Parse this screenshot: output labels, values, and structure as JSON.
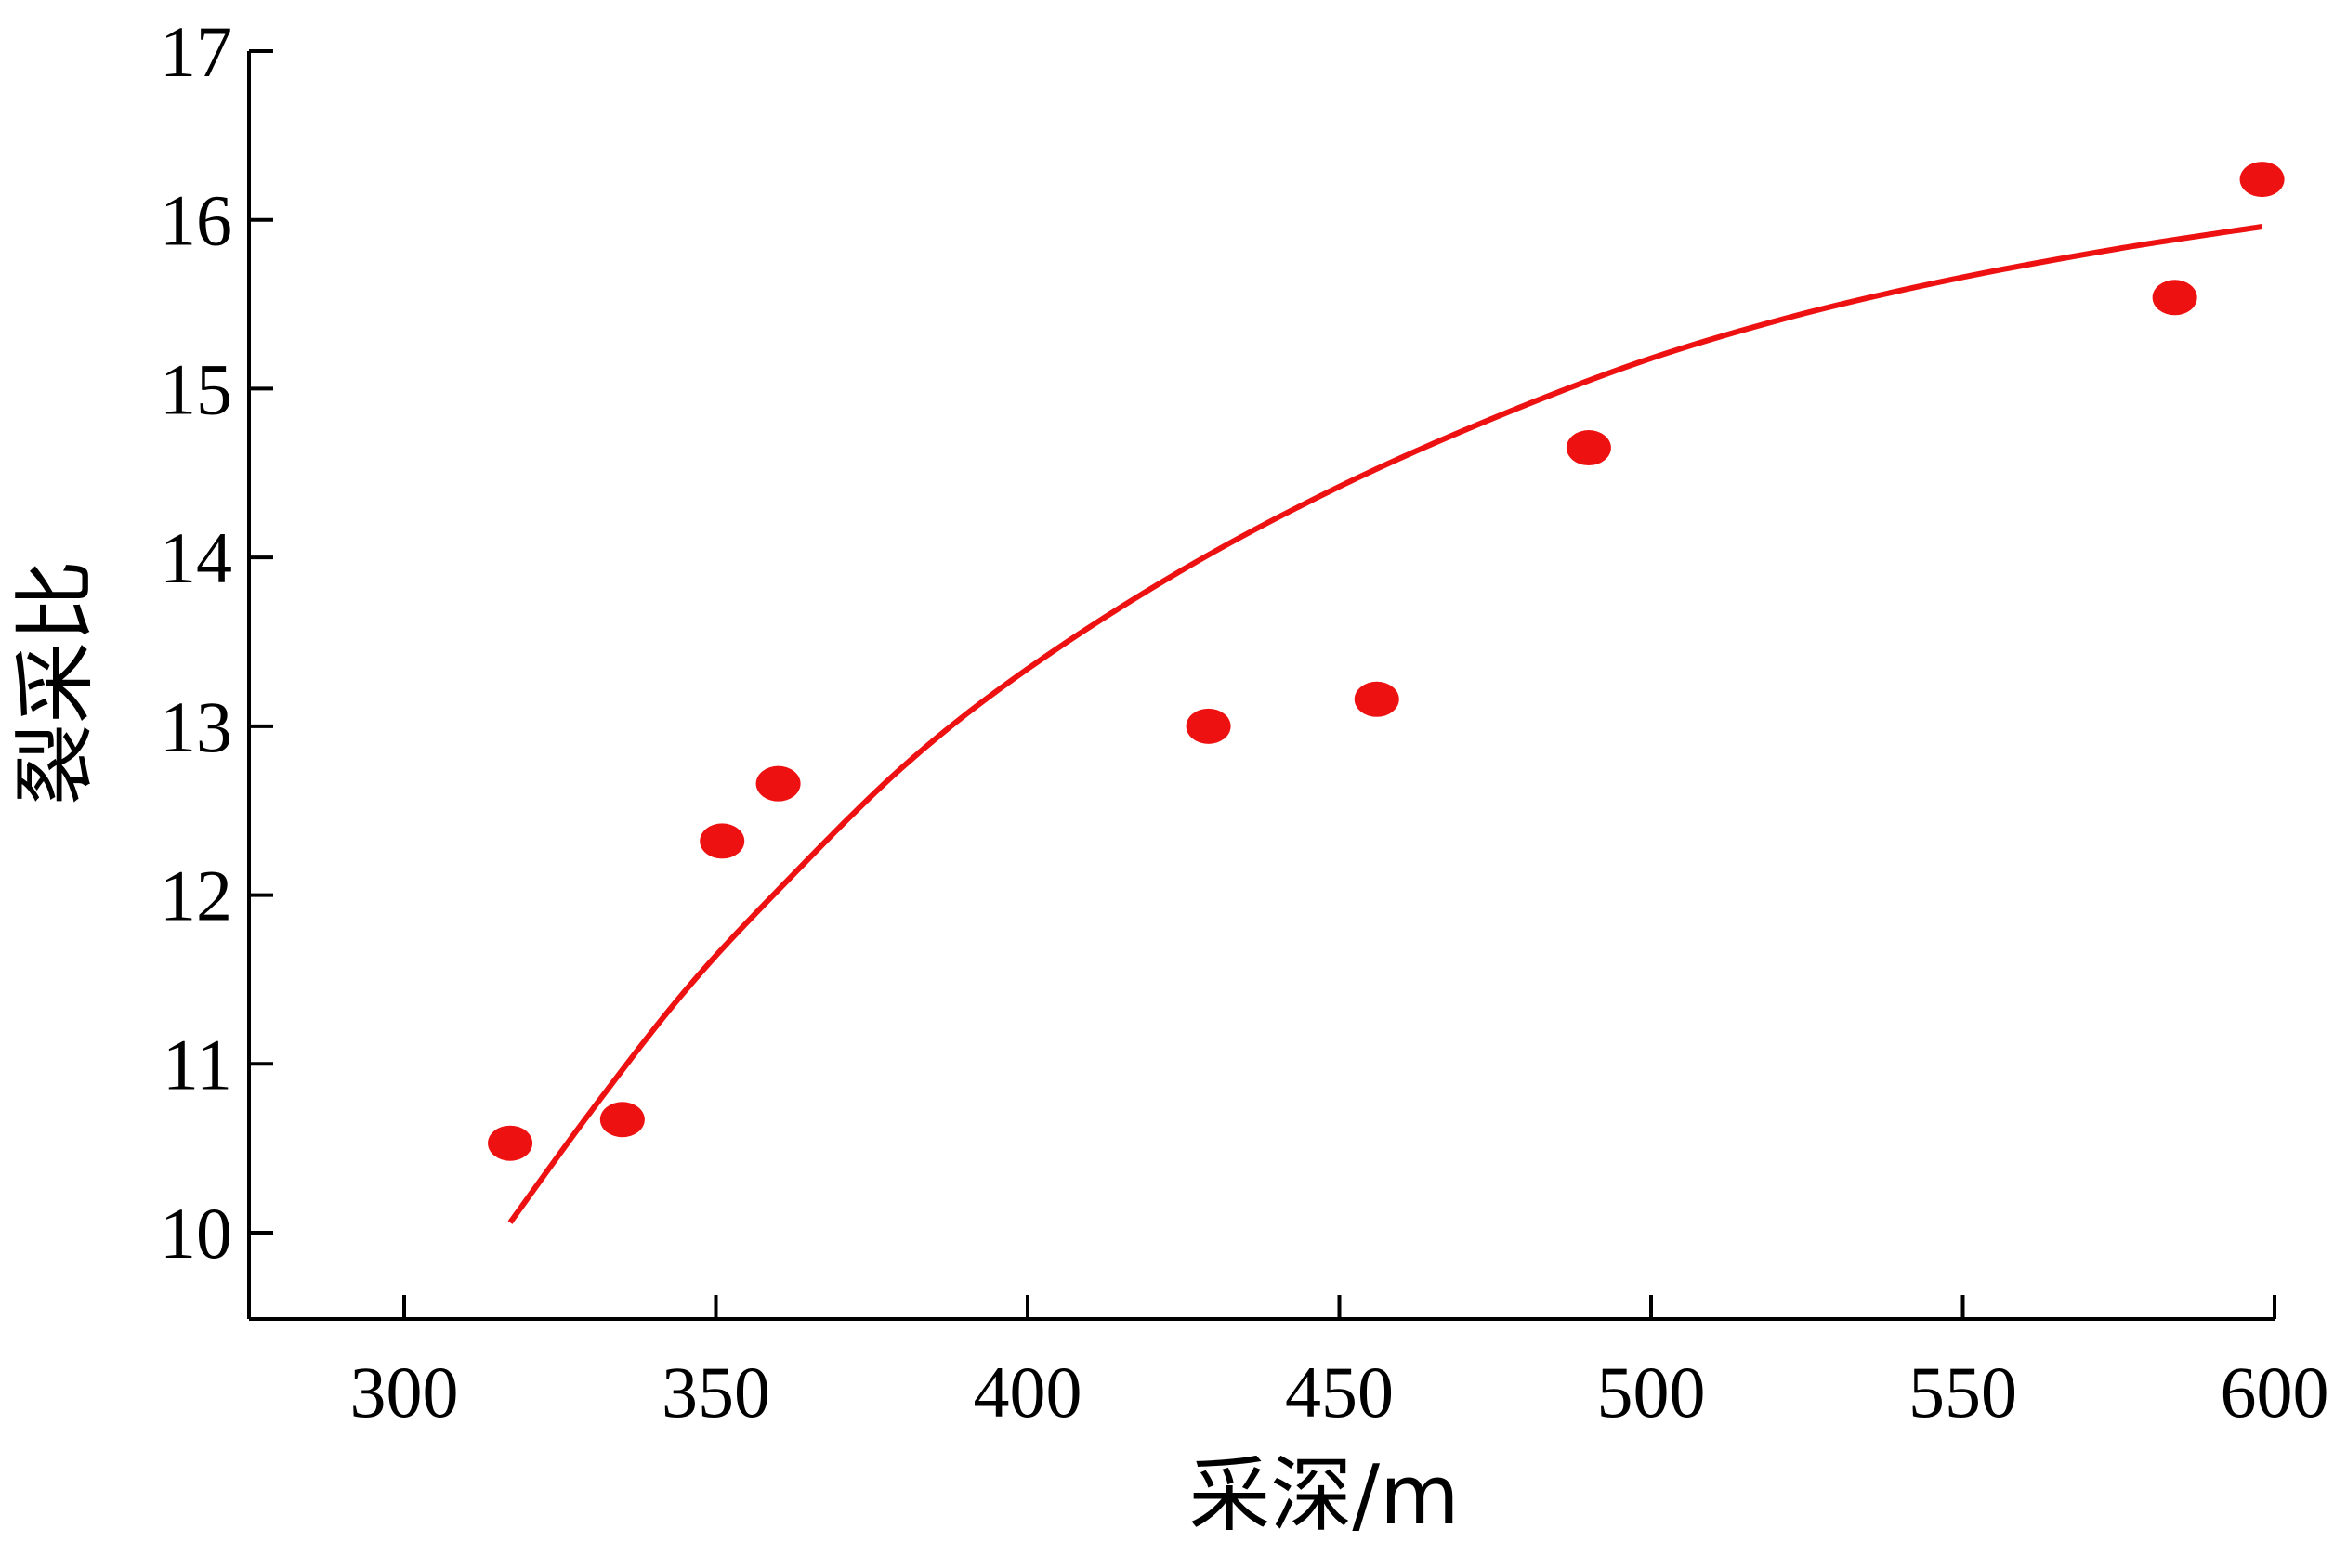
{
  "chart_data": {
    "type": "scatter",
    "xlabel": "采深/m",
    "ylabel": "裂采比",
    "xlim": [
      275,
      600
    ],
    "ylim": [
      9.5,
      17
    ],
    "xticks": [
      300,
      350,
      400,
      450,
      500,
      550,
      600
    ],
    "yticks": [
      10,
      11,
      12,
      13,
      14,
      15,
      16,
      17
    ],
    "grid": false,
    "series": [
      {
        "kind": "scatter",
        "color": "#ee1111",
        "points": [
          {
            "x": 317,
            "y": 10.53
          },
          {
            "x": 335,
            "y": 10.67
          },
          {
            "x": 351,
            "y": 12.32
          },
          {
            "x": 360,
            "y": 12.66
          },
          {
            "x": 429,
            "y": 13.0
          },
          {
            "x": 456,
            "y": 13.16
          },
          {
            "x": 490,
            "y": 14.65
          },
          {
            "x": 584,
            "y": 15.54
          },
          {
            "x": 598,
            "y": 16.24
          }
        ]
      },
      {
        "kind": "fit-line",
        "color": "#ee1111",
        "points": [
          {
            "x": 317,
            "y": 10.06
          },
          {
            "x": 330,
            "y": 10.72
          },
          {
            "x": 345,
            "y": 11.43
          },
          {
            "x": 360,
            "y": 12.03
          },
          {
            "x": 380,
            "y": 12.76
          },
          {
            "x": 400,
            "y": 13.34
          },
          {
            "x": 425,
            "y": 13.93
          },
          {
            "x": 450,
            "y": 14.42
          },
          {
            "x": 475,
            "y": 14.83
          },
          {
            "x": 500,
            "y": 15.18
          },
          {
            "x": 525,
            "y": 15.45
          },
          {
            "x": 550,
            "y": 15.66
          },
          {
            "x": 575,
            "y": 15.83
          },
          {
            "x": 598,
            "y": 15.96
          }
        ]
      }
    ]
  }
}
